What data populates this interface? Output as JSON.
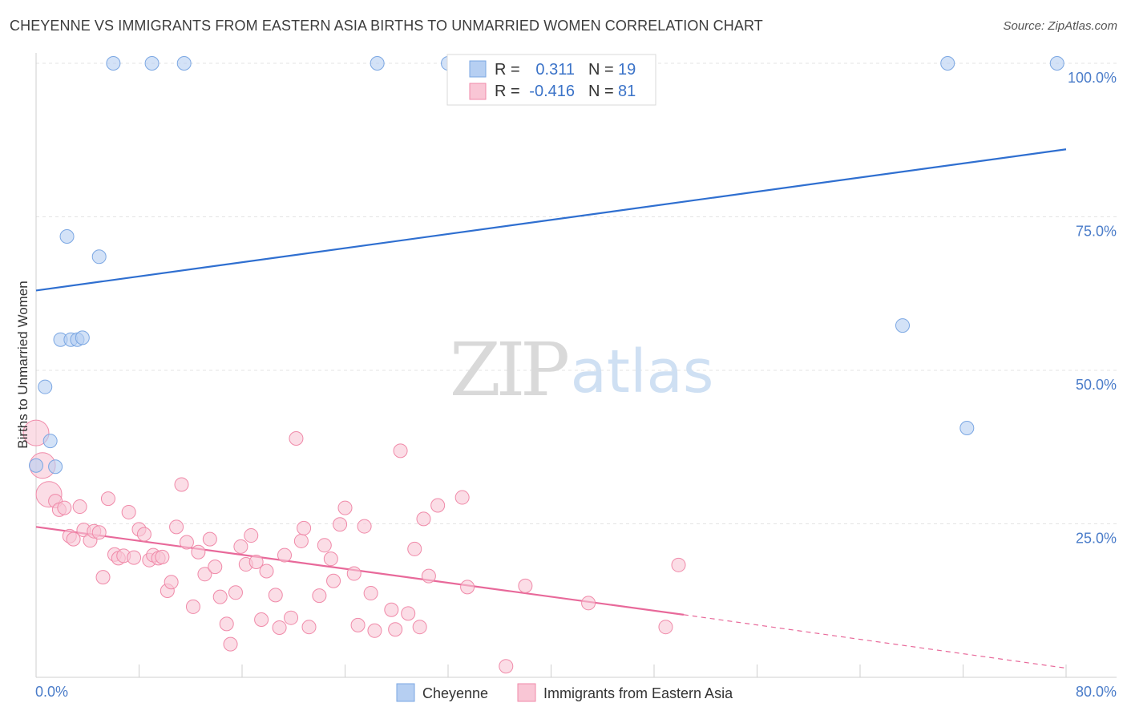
{
  "title": "CHEYENNE VS IMMIGRANTS FROM EASTERN ASIA BIRTHS TO UNMARRIED WOMEN CORRELATION CHART",
  "source": "Source: ZipAtlas.com",
  "watermark": {
    "zip": "ZIP",
    "atlas": "atlas"
  },
  "chart_data": {
    "type": "scatter",
    "title": "CHEYENNE VS IMMIGRANTS FROM EASTERN ASIA BIRTHS TO UNMARRIED WOMEN CORRELATION CHART",
    "xlabel": "",
    "ylabel": "Births to Unmarried Women",
    "xlim": [
      0,
      80
    ],
    "ylim": [
      0,
      100
    ],
    "x_tick_labels": [
      "0.0%",
      "80.0%"
    ],
    "y_ticks": [
      25,
      50,
      75,
      100
    ],
    "y_tick_labels": [
      "25.0%",
      "50.0%",
      "75.0%",
      "100.0%"
    ],
    "grid": true,
    "legend_position": "top-center",
    "stats": [
      {
        "label_r": "R =",
        "r": "0.311",
        "label_n": "N =",
        "n": "19"
      },
      {
        "label_r": "R =",
        "r": "-0.416",
        "label_n": "N =",
        "n": "81"
      }
    ],
    "series": [
      {
        "name": "Cheyenne",
        "color": "#7ba7e3",
        "fill": "#b6cff2",
        "trend_color": "#2f6fd0",
        "trend": {
          "x": [
            0,
            80
          ],
          "y": [
            63,
            86
          ]
        },
        "points": [
          {
            "x": 6.0,
            "y": 100
          },
          {
            "x": 9.0,
            "y": 100
          },
          {
            "x": 11.5,
            "y": 100
          },
          {
            "x": 26.5,
            "y": 100
          },
          {
            "x": 32.0,
            "y": 100
          },
          {
            "x": 70.8,
            "y": 100
          },
          {
            "x": 79.3,
            "y": 100
          },
          {
            "x": 2.4,
            "y": 71.8
          },
          {
            "x": 4.9,
            "y": 68.5
          },
          {
            "x": 1.9,
            "y": 55.0
          },
          {
            "x": 2.7,
            "y": 55.0
          },
          {
            "x": 3.2,
            "y": 55.0
          },
          {
            "x": 3.6,
            "y": 55.3
          },
          {
            "x": 67.3,
            "y": 57.3
          },
          {
            "x": 0.7,
            "y": 47.3
          },
          {
            "x": 1.1,
            "y": 38.5
          },
          {
            "x": 1.5,
            "y": 34.3
          },
          {
            "x": 0.0,
            "y": 34.5
          },
          {
            "x": 72.3,
            "y": 40.6
          }
        ]
      },
      {
        "name": "Immigrants from Eastern Asia",
        "color": "#f08aa9",
        "fill": "#f9c6d5",
        "trend_color": "#e8699a",
        "trend": {
          "x": [
            0,
            50.3
          ],
          "y": [
            24.5,
            10.2
          ]
        },
        "trend_dashed": {
          "x": [
            50.3,
            80
          ],
          "y": [
            10.2,
            1.5
          ]
        },
        "points": [
          {
            "x": 0.0,
            "y": 39.8,
            "big": 1
          },
          {
            "x": 0.5,
            "y": 34.5,
            "big": 1
          },
          {
            "x": 1.0,
            "y": 29.8,
            "big": 1
          },
          {
            "x": 1.5,
            "y": 28.7
          },
          {
            "x": 1.8,
            "y": 27.3
          },
          {
            "x": 2.2,
            "y": 27.6
          },
          {
            "x": 2.6,
            "y": 23.0
          },
          {
            "x": 2.9,
            "y": 22.5
          },
          {
            "x": 3.4,
            "y": 27.8
          },
          {
            "x": 3.7,
            "y": 24.0
          },
          {
            "x": 4.2,
            "y": 22.3
          },
          {
            "x": 4.5,
            "y": 23.8
          },
          {
            "x": 4.9,
            "y": 23.6
          },
          {
            "x": 5.2,
            "y": 16.3
          },
          {
            "x": 5.6,
            "y": 29.1
          },
          {
            "x": 6.1,
            "y": 20.0
          },
          {
            "x": 6.4,
            "y": 19.4
          },
          {
            "x": 6.8,
            "y": 19.8
          },
          {
            "x": 7.2,
            "y": 26.9
          },
          {
            "x": 7.6,
            "y": 19.5
          },
          {
            "x": 8.0,
            "y": 24.1
          },
          {
            "x": 8.4,
            "y": 23.3
          },
          {
            "x": 8.8,
            "y": 19.1
          },
          {
            "x": 9.1,
            "y": 19.9
          },
          {
            "x": 9.5,
            "y": 19.4
          },
          {
            "x": 9.8,
            "y": 19.6
          },
          {
            "x": 10.2,
            "y": 14.1
          },
          {
            "x": 10.5,
            "y": 15.5
          },
          {
            "x": 10.9,
            "y": 24.5
          },
          {
            "x": 11.3,
            "y": 31.4
          },
          {
            "x": 11.7,
            "y": 22.0
          },
          {
            "x": 12.2,
            "y": 11.5
          },
          {
            "x": 12.6,
            "y": 20.4
          },
          {
            "x": 13.1,
            "y": 16.8
          },
          {
            "x": 13.5,
            "y": 22.5
          },
          {
            "x": 13.9,
            "y": 18.0
          },
          {
            "x": 14.3,
            "y": 13.1
          },
          {
            "x": 14.8,
            "y": 8.7
          },
          {
            "x": 15.1,
            "y": 5.4
          },
          {
            "x": 15.5,
            "y": 13.8
          },
          {
            "x": 15.9,
            "y": 21.3
          },
          {
            "x": 16.3,
            "y": 18.4
          },
          {
            "x": 16.7,
            "y": 23.1
          },
          {
            "x": 17.1,
            "y": 18.8
          },
          {
            "x": 17.5,
            "y": 9.4
          },
          {
            "x": 17.9,
            "y": 17.3
          },
          {
            "x": 18.6,
            "y": 13.4
          },
          {
            "x": 18.9,
            "y": 8.1
          },
          {
            "x": 19.3,
            "y": 19.9
          },
          {
            "x": 19.8,
            "y": 9.7
          },
          {
            "x": 20.2,
            "y": 38.9
          },
          {
            "x": 20.6,
            "y": 22.2
          },
          {
            "x": 20.8,
            "y": 24.3
          },
          {
            "x": 21.2,
            "y": 8.2
          },
          {
            "x": 22.0,
            "y": 13.3
          },
          {
            "x": 22.4,
            "y": 21.5
          },
          {
            "x": 22.9,
            "y": 19.3
          },
          {
            "x": 23.1,
            "y": 15.7
          },
          {
            "x": 23.6,
            "y": 24.9
          },
          {
            "x": 24.0,
            "y": 27.6
          },
          {
            "x": 24.7,
            "y": 16.9
          },
          {
            "x": 25.0,
            "y": 8.5
          },
          {
            "x": 25.5,
            "y": 24.6
          },
          {
            "x": 26.0,
            "y": 13.7
          },
          {
            "x": 26.3,
            "y": 7.6
          },
          {
            "x": 27.6,
            "y": 11.0
          },
          {
            "x": 27.9,
            "y": 7.8
          },
          {
            "x": 28.3,
            "y": 36.9
          },
          {
            "x": 28.9,
            "y": 10.4
          },
          {
            "x": 29.4,
            "y": 20.9
          },
          {
            "x": 29.8,
            "y": 8.2
          },
          {
            "x": 30.1,
            "y": 25.8
          },
          {
            "x": 30.5,
            "y": 16.5
          },
          {
            "x": 31.2,
            "y": 28.0
          },
          {
            "x": 33.1,
            "y": 29.3
          },
          {
            "x": 33.5,
            "y": 14.7
          },
          {
            "x": 36.5,
            "y": 1.8
          },
          {
            "x": 38.0,
            "y": 14.9
          },
          {
            "x": 42.9,
            "y": 12.1
          },
          {
            "x": 48.9,
            "y": 8.2
          },
          {
            "x": 49.9,
            "y": 18.3
          }
        ]
      }
    ]
  }
}
